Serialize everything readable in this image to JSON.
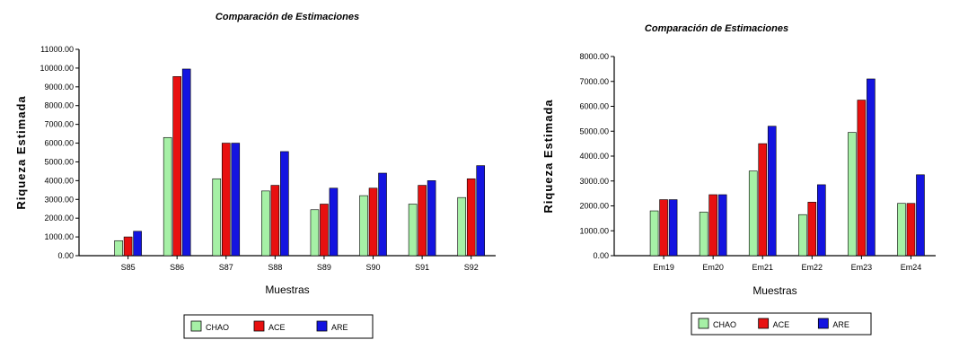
{
  "chart_data": [
    {
      "type": "bar",
      "title": "Comparación de Estimaciones",
      "xlabel": "Muestras",
      "ylabel": "Riqueza Estimada",
      "ylim": [
        0,
        11000
      ],
      "yticks": [
        0,
        1000,
        2000,
        3000,
        4000,
        5000,
        6000,
        7000,
        8000,
        9000,
        10000,
        11000
      ],
      "ytick_labels": [
        "0.00",
        "1000.00",
        "2000.00",
        "3000.00",
        "4000.00",
        "5000.00",
        "6000.00",
        "7000.00",
        "8000.00",
        "9000.00",
        "10000.00",
        "11000.00"
      ],
      "categories": [
        "S85",
        "S86",
        "S87",
        "S88",
        "S89",
        "S90",
        "S91",
        "S92"
      ],
      "series": [
        {
          "name": "CHAO",
          "color": "#a6f0a6",
          "values": [
            800,
            6300,
            4100,
            3450,
            2450,
            3200,
            2750,
            3100
          ]
        },
        {
          "name": "ACE",
          "color": "#e81010",
          "values": [
            1000,
            9550,
            6000,
            3750,
            2750,
            3600,
            3750,
            4100
          ]
        },
        {
          "name": "ARE",
          "color": "#1414e0",
          "values": [
            1300,
            9950,
            6000,
            5550,
            3600,
            4400,
            4000,
            4800
          ]
        }
      ],
      "grid": false,
      "legend": "bottom"
    },
    {
      "type": "bar",
      "title": "Comparación de Estimaciones",
      "xlabel": "Muestras",
      "ylabel": "Riqueza Estimada",
      "ylim": [
        0,
        8000
      ],
      "yticks": [
        0,
        1000,
        2000,
        3000,
        4000,
        5000,
        6000,
        7000,
        8000
      ],
      "ytick_labels": [
        "0.00",
        "1000.00",
        "2000.00",
        "3000.00",
        "4000.00",
        "5000.00",
        "6000.00",
        "7000.00",
        "8000.00"
      ],
      "categories": [
        "Em19",
        "Em20",
        "Em21",
        "Em22",
        "Em23",
        "Em24"
      ],
      "series": [
        {
          "name": "CHAO",
          "color": "#a6f0a6",
          "values": [
            1800,
            1750,
            3400,
            1650,
            4950,
            2100
          ]
        },
        {
          "name": "ACE",
          "color": "#e81010",
          "values": [
            2250,
            2450,
            4500,
            2150,
            6250,
            2100
          ]
        },
        {
          "name": "ARE",
          "color": "#1414e0",
          "values": [
            2250,
            2450,
            5200,
            2850,
            7100,
            3250
          ]
        }
      ],
      "grid": false,
      "legend": "bottom"
    }
  ]
}
